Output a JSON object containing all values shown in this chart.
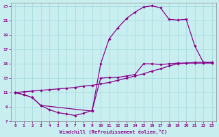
{
  "title": "",
  "xlabel": "Windchill (Refroidissement éolien,°C)",
  "ylabel": "",
  "bg_color": "#c8eef0",
  "line_color": "#8b008b",
  "grid_color": "#a8dde0",
  "xlim": [
    -0.5,
    23.5
  ],
  "ylim": [
    7,
    23.5
  ],
  "xticks": [
    0,
    1,
    2,
    3,
    4,
    5,
    6,
    7,
    8,
    9,
    10,
    11,
    12,
    13,
    14,
    15,
    16,
    17,
    18,
    19,
    20,
    21,
    22,
    23
  ],
  "yticks": [
    7,
    9,
    11,
    13,
    15,
    17,
    19,
    21,
    23
  ],
  "line1_x": [
    0,
    1,
    2,
    3,
    4,
    5,
    6,
    7,
    8,
    9,
    10,
    11,
    12,
    13,
    14,
    15,
    16,
    17,
    18,
    19,
    20,
    21,
    22,
    23
  ],
  "line1_y": [
    11,
    10.7,
    10.3,
    9.2,
    8.6,
    8.2,
    8.0,
    7.8,
    8.1,
    8.5,
    13.0,
    13.1,
    13.1,
    13.3,
    13.5,
    15.0,
    15.0,
    14.9,
    15.0,
    15.1,
    15.1,
    15.1,
    15.1,
    15.1
  ],
  "line2_x": [
    0,
    1,
    2,
    3,
    4,
    5,
    6,
    7,
    8,
    9,
    10,
    11,
    12,
    13,
    14,
    15,
    16,
    17,
    18,
    19,
    20,
    21,
    22,
    23
  ],
  "line2_y": [
    11,
    11.1,
    11.2,
    11.3,
    11.4,
    11.5,
    11.6,
    11.7,
    11.9,
    12.0,
    12.2,
    12.4,
    12.7,
    13.0,
    13.3,
    13.6,
    14.0,
    14.3,
    14.7,
    15.0,
    15.1,
    15.2,
    15.2,
    15.2
  ],
  "line3_x": [
    0,
    1,
    2,
    3,
    9,
    10,
    11,
    12,
    13,
    14,
    15,
    16,
    17,
    18,
    19,
    20,
    21,
    22,
    23
  ],
  "line3_y": [
    11,
    10.7,
    10.3,
    9.2,
    8.4,
    15.0,
    18.5,
    20.0,
    21.3,
    22.2,
    22.9,
    23.1,
    22.8,
    21.2,
    21.1,
    21.2,
    17.5,
    15.2,
    15.2
  ]
}
